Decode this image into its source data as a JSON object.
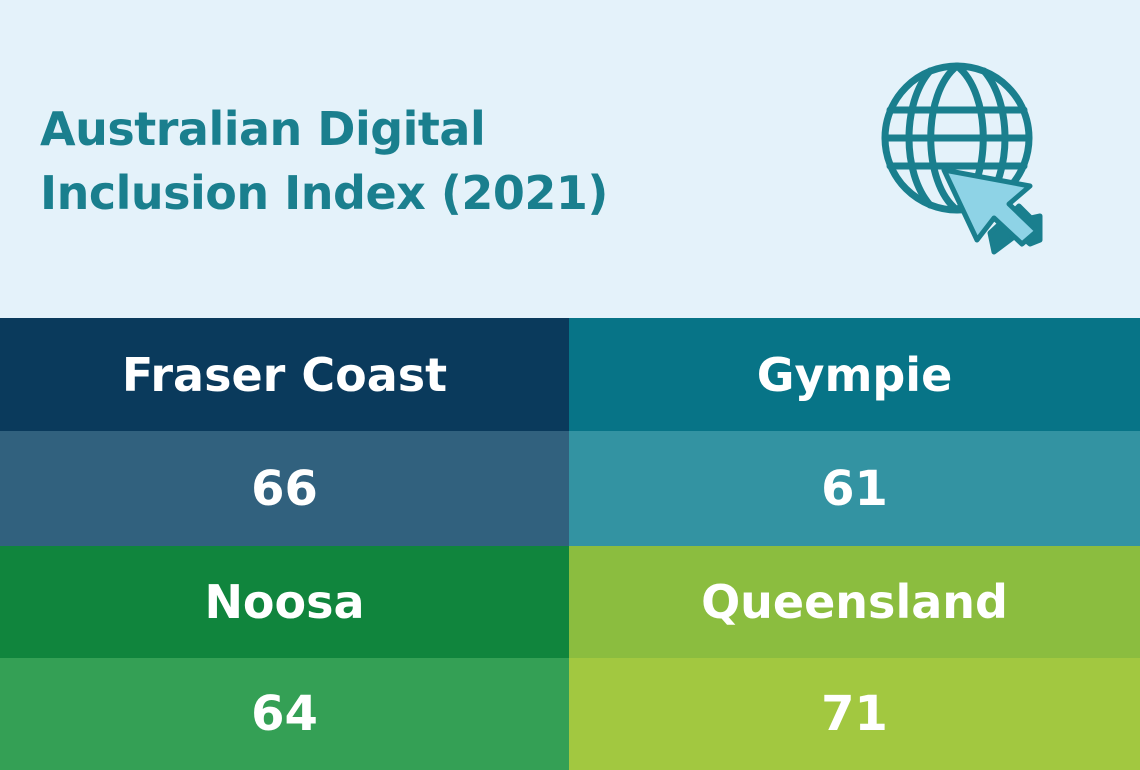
{
  "title": {
    "line1": "Australian Digital",
    "line2": "Inclusion Index (2021)"
  },
  "icon": "globe-with-cursor-icon",
  "colors": {
    "background": "#e4f2fa",
    "title": "#1a7f8e",
    "fraser_coast_header": "#0a3a5c",
    "fraser_coast_value": "#31617e",
    "gympie_header": "#077487",
    "gympie_value": "#3393a2",
    "noosa_header": "#10853d",
    "noosa_value": "#34a055",
    "queensland_header": "#8bbd3f",
    "queensland_value": "#a2c840"
  },
  "regions": [
    {
      "name": "Fraser Coast",
      "value": "66"
    },
    {
      "name": "Gympie",
      "value": "61"
    },
    {
      "name": "Noosa",
      "value": "64"
    },
    {
      "name": "Queensland",
      "value": "71"
    }
  ]
}
